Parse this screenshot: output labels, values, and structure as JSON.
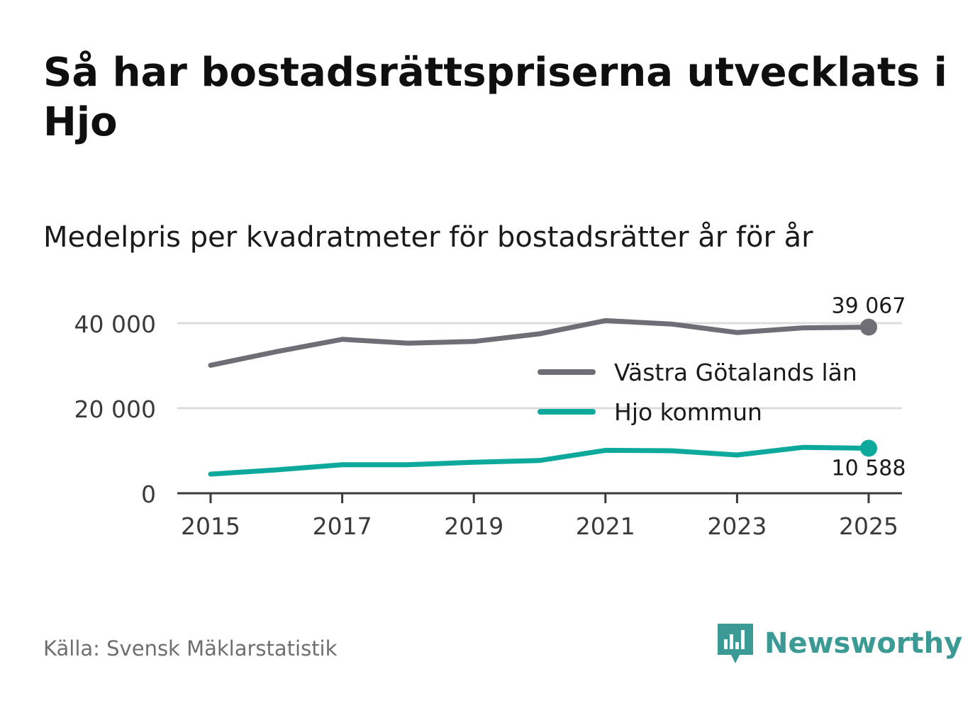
{
  "header": {
    "title": "Så har bostadsrättspriserna utvecklats i Hjo",
    "subtitle": "Medelpris per kvadratmeter för bostadsrätter år för år"
  },
  "footer": {
    "source": "Källa: Svensk Mäklarstatistik",
    "brand": "Newsworthy",
    "brand_icon": "newsworthy-logo-icon",
    "brand_color": "#3b9b94"
  },
  "chart_data": {
    "type": "line",
    "title": "Så har bostadsrättspriserna utvecklats i Hjo",
    "subtitle": "Medelpris per kvadratmeter för bostadsrätter år för år",
    "xlabel": "",
    "ylabel": "",
    "x": [
      2015,
      2016,
      2017,
      2018,
      2019,
      2020,
      2021,
      2022,
      2023,
      2024,
      2025
    ],
    "x_ticks": [
      "2015",
      "2017",
      "2019",
      "2021",
      "2023",
      "2025"
    ],
    "y_ticks": [
      "0",
      "20 000",
      "40 000"
    ],
    "ylim": [
      0,
      40000
    ],
    "grid": true,
    "legend_position": "right",
    "series": [
      {
        "name": "Västra Götalands län",
        "color": "#6f6e76",
        "values": [
          30100,
          33300,
          36200,
          35300,
          35700,
          37500,
          40600,
          39800,
          37800,
          38900,
          39067
        ],
        "end_label": "39 067"
      },
      {
        "name": "Hjo kommun",
        "color": "#0ea99d",
        "values": [
          4500,
          5500,
          6700,
          6700,
          7300,
          7700,
          10100,
          10000,
          9000,
          10800,
          10588
        ],
        "end_label": "10 588"
      }
    ]
  }
}
